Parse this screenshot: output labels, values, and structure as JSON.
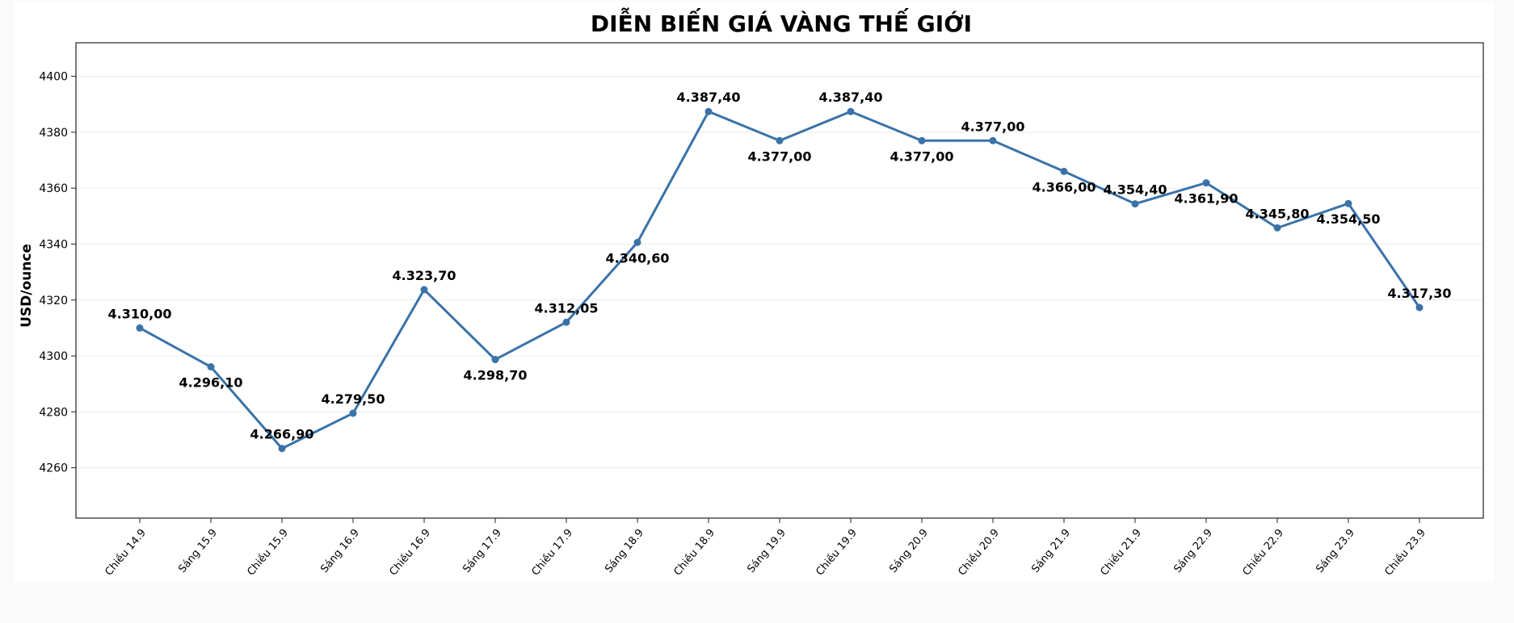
{
  "chart_data": {
    "type": "line",
    "title": "DIỄN BIẾN GIÁ VÀNG THẾ GIỚI",
    "xlabel": "",
    "ylabel": "USD/ounce",
    "ylim": [
      4242,
      4412
    ],
    "yticks": [
      4260,
      4280,
      4300,
      4320,
      4340,
      4360,
      4380,
      4400
    ],
    "grid": true,
    "color": "#3a72a8",
    "categories": [
      "Chiều 14.9",
      "Sáng 15.9",
      "Chiều 15.9",
      "Sáng 16.9",
      "Chiều 16.9",
      "Sáng 17.9",
      "Chiều 17.9",
      "Sáng 18.9",
      "Chiều 18.9",
      "Sáng 19.9",
      "Chiều 19.9",
      "Sáng 20.9",
      "Chiều 20.9",
      "Sáng 21.9",
      "Chiều 21.9",
      "Sáng 22.9",
      "Chiều 22.9",
      "Sáng 23.9",
      "Chiều 23.9"
    ],
    "values": [
      4310.0,
      4296.1,
      4266.9,
      4279.5,
      4323.7,
      4298.7,
      4312.05,
      4340.6,
      4387.4,
      4377.0,
      4387.4,
      4377.0,
      4377.0,
      4366.0,
      4354.4,
      4361.9,
      4345.8,
      4354.5,
      4317.3
    ],
    "data_labels": [
      "4.310,00",
      "4.296,10",
      "4.266,90",
      "4.279,50",
      "4.323,70",
      "4.298,70",
      "4.312,05",
      "4.340,60",
      "4.387,40",
      "4.377,00",
      "4.387,40",
      "4.377,00",
      "4.377,00",
      "4.366,00",
      "4.354,40",
      "4.361,90",
      "4.345,80",
      "4.354,50",
      "4.317,30"
    ],
    "label_side": [
      "above",
      "below",
      "above",
      "above",
      "above",
      "below",
      "above",
      "below",
      "above",
      "below",
      "above",
      "below",
      "above",
      "below",
      "above",
      "below",
      "above",
      "below",
      "above"
    ]
  }
}
